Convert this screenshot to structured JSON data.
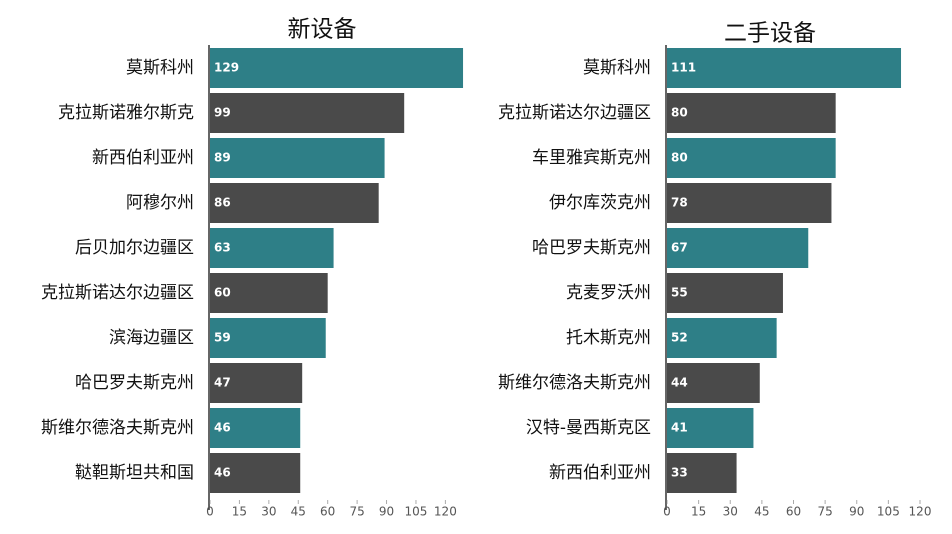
{
  "chart_data": [
    {
      "type": "bar",
      "orientation": "horizontal",
      "title": "新设备",
      "categories": [
        "莫斯科州",
        "克拉斯诺雅尔斯克",
        "新西伯利亚州",
        "阿穆尔州",
        "后贝加尔边疆区",
        "克拉斯诺达尔边疆区",
        "滨海边疆区",
        "哈巴罗夫斯克州",
        "斯维尔德洛夫斯克州",
        "鞑靼斯坦共和国"
      ],
      "values": [
        129,
        99,
        89,
        86,
        63,
        60,
        59,
        47,
        46,
        46
      ],
      "colors": [
        "#2e7f87",
        "#4a4a4a",
        "#2e7f87",
        "#4a4a4a",
        "#2e7f87",
        "#4a4a4a",
        "#2e7f87",
        "#4a4a4a",
        "#2e7f87",
        "#4a4a4a"
      ],
      "xlim": [
        0,
        130
      ],
      "xticks": [
        0,
        15,
        30,
        45,
        60,
        75,
        90,
        105,
        120
      ]
    },
    {
      "type": "bar",
      "orientation": "horizontal",
      "title": "二手设备",
      "categories": [
        "莫斯科州",
        "克拉斯诺达尔边疆区",
        "车里雅宾斯克州",
        "伊尔库茨克州",
        "哈巴罗夫斯克州",
        "克麦罗沃州",
        "托木斯克州",
        "斯维尔德洛夫斯克州",
        "汉特-曼西斯克区",
        "新西伯利亚州"
      ],
      "values": [
        111,
        80,
        80,
        78,
        67,
        55,
        52,
        44,
        41,
        33
      ],
      "colors": [
        "#2e7f87",
        "#4a4a4a",
        "#2e7f87",
        "#4a4a4a",
        "#2e7f87",
        "#4a4a4a",
        "#2e7f87",
        "#4a4a4a",
        "#2e7f87",
        "#4a4a4a"
      ],
      "xlim": [
        0,
        120
      ],
      "xticks": [
        0,
        15,
        30,
        45,
        60,
        75,
        90,
        105,
        120
      ]
    }
  ]
}
